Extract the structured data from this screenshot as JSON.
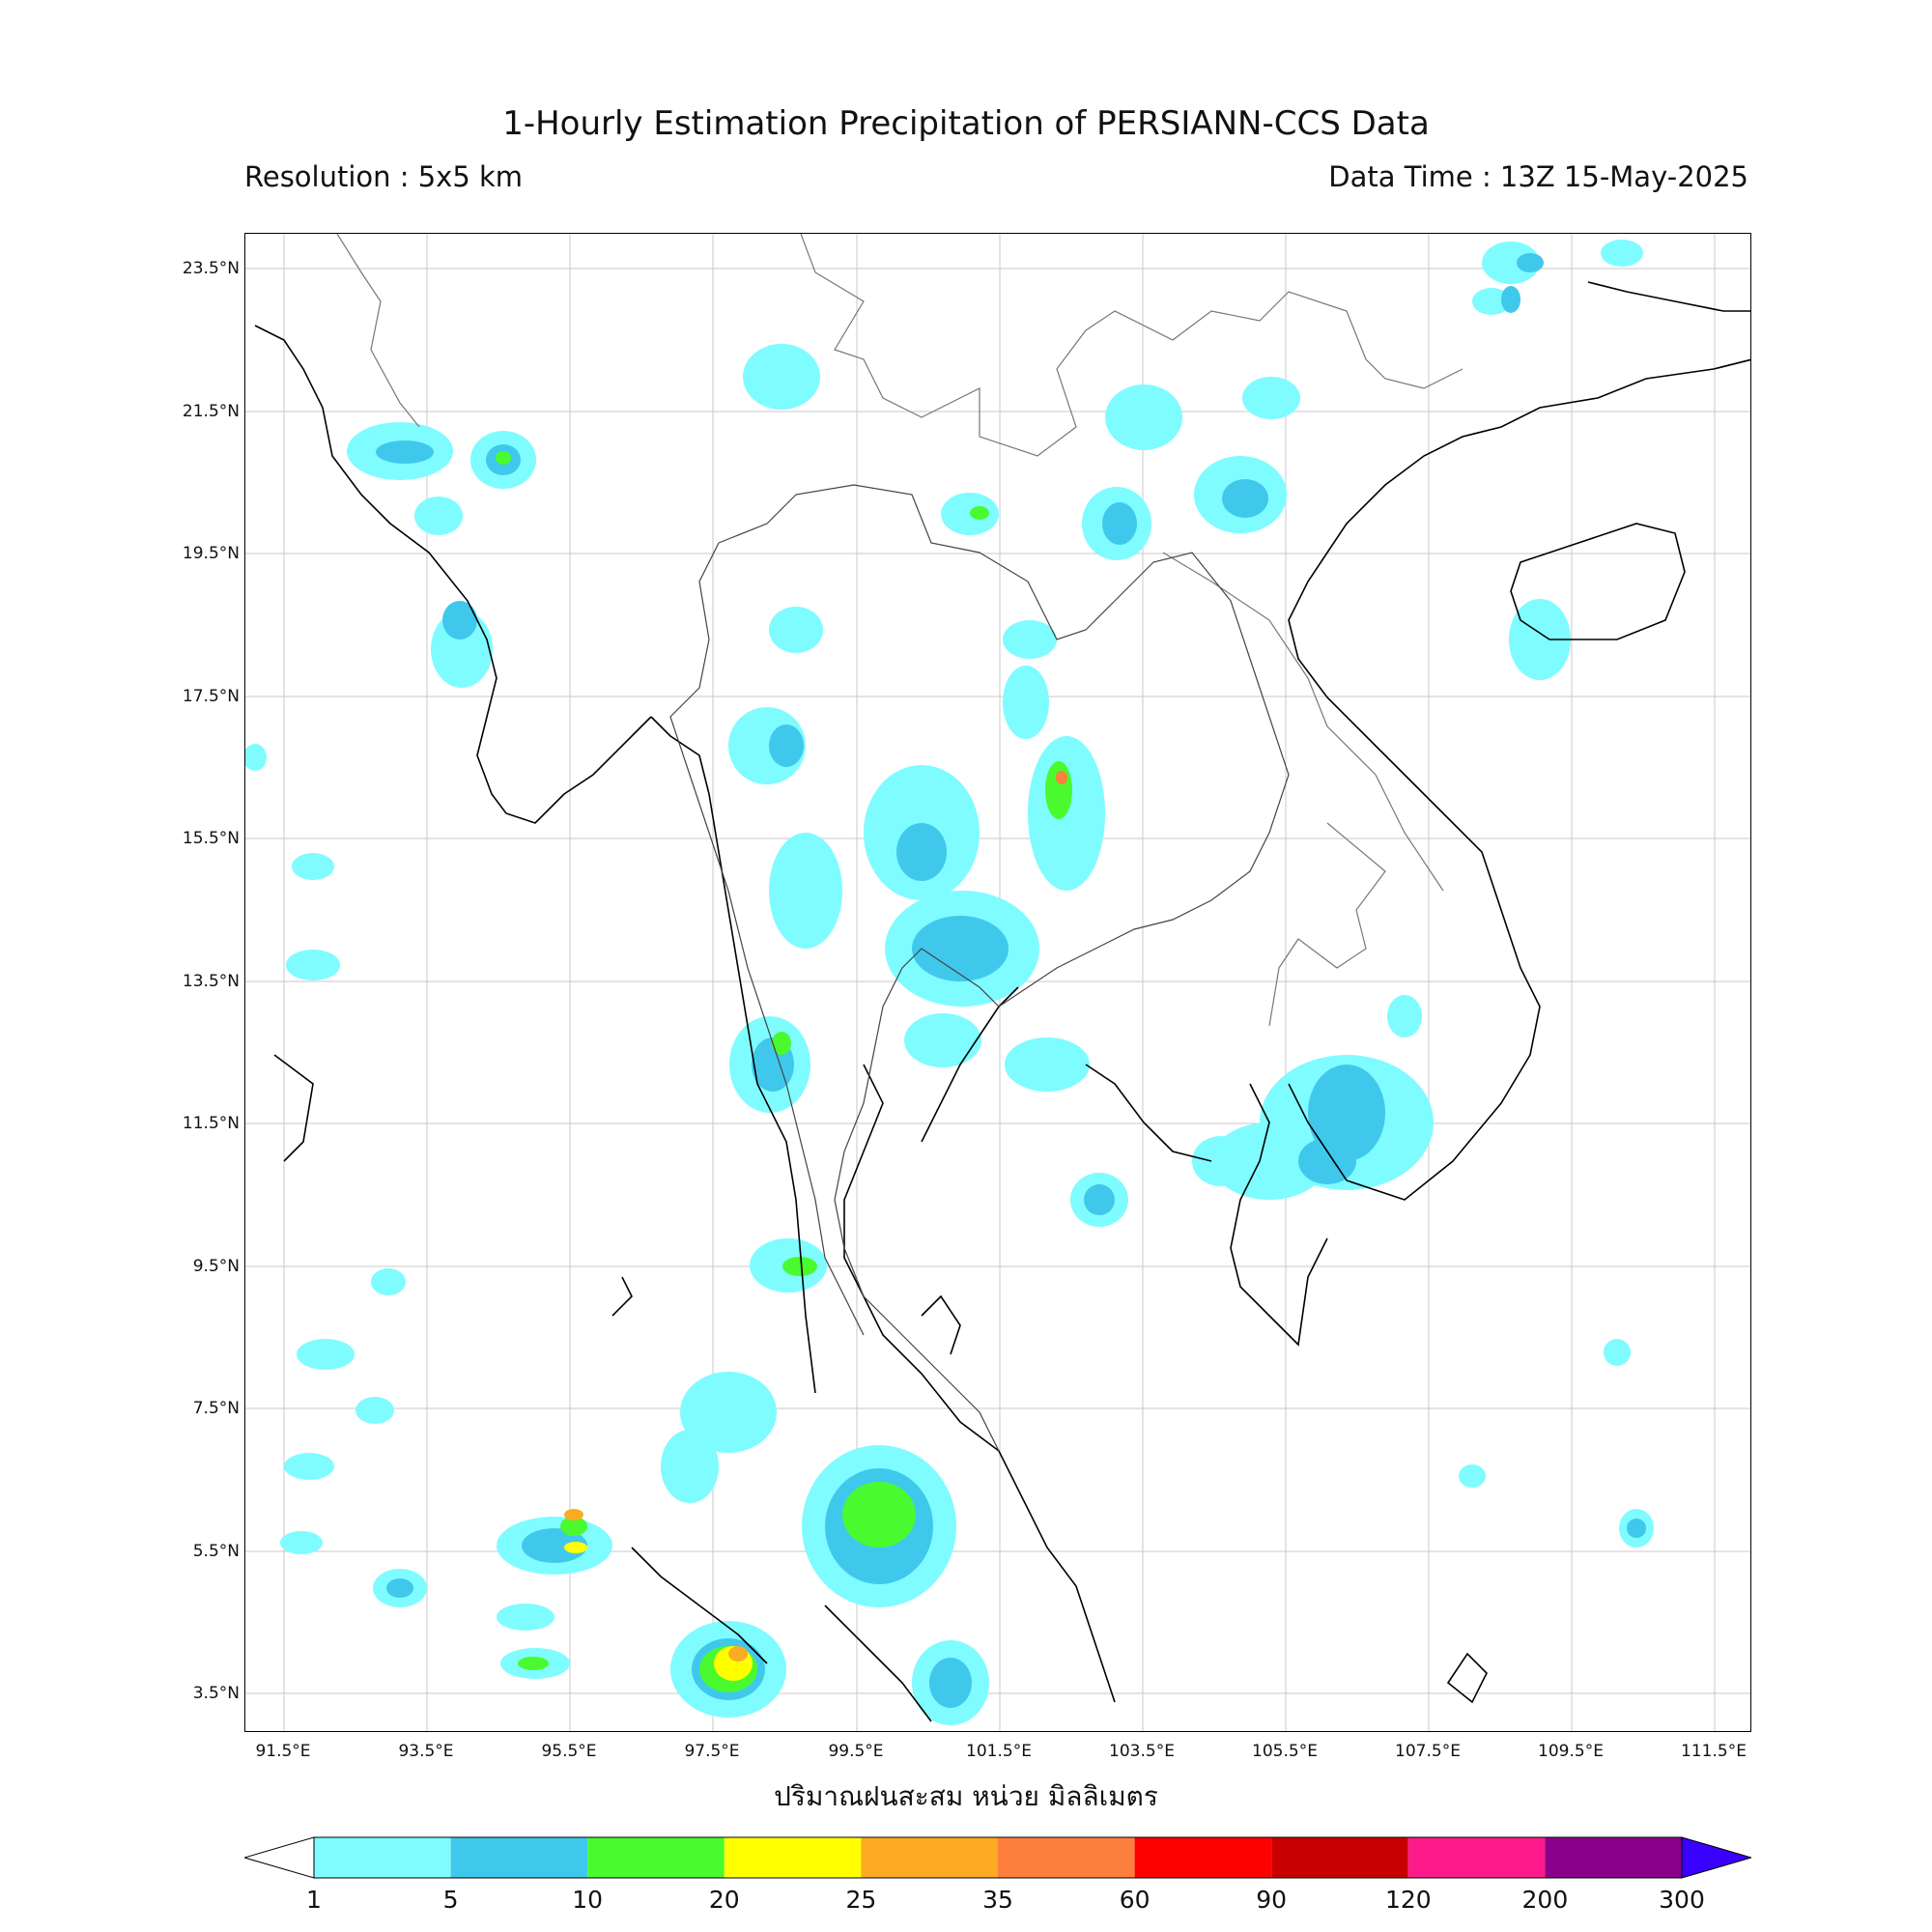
{
  "title": "1-Hourly Estimation Precipitation of PERSIANN-CCS Data",
  "resolution": "Resolution : 5x5 km",
  "data_time": "Data Time : 13Z 15-May-2025",
  "xlabel": "ปริมาณฝนสะสม หน่วย มิลลิเมตร",
  "lat_ticks": [
    "23.5°N",
    "21.5°N",
    "19.5°N",
    "17.5°N",
    "15.5°N",
    "13.5°N",
    "11.5°N",
    "9.5°N",
    "7.5°N",
    "5.5°N",
    "3.5°N"
  ],
  "lon_ticks": [
    "91.5°E",
    "93.5°E",
    "95.5°E",
    "97.5°E",
    "99.5°E",
    "101.5°E",
    "103.5°E",
    "105.5°E",
    "107.5°E",
    "109.5°E",
    "111.5°E"
  ],
  "colorbar": {
    "ticks": [
      "1",
      "5",
      "10",
      "20",
      "25",
      "35",
      "60",
      "90",
      "120",
      "200",
      "300"
    ],
    "colors": [
      "#7ffcff",
      "#40c8ec",
      "#4afa2f",
      "#ffff00",
      "#fcab22",
      "#fd7f3e",
      "#fd0000",
      "#c90000",
      "#fd1a8b",
      "#8b008b",
      "#3a00ff"
    ]
  }
}
